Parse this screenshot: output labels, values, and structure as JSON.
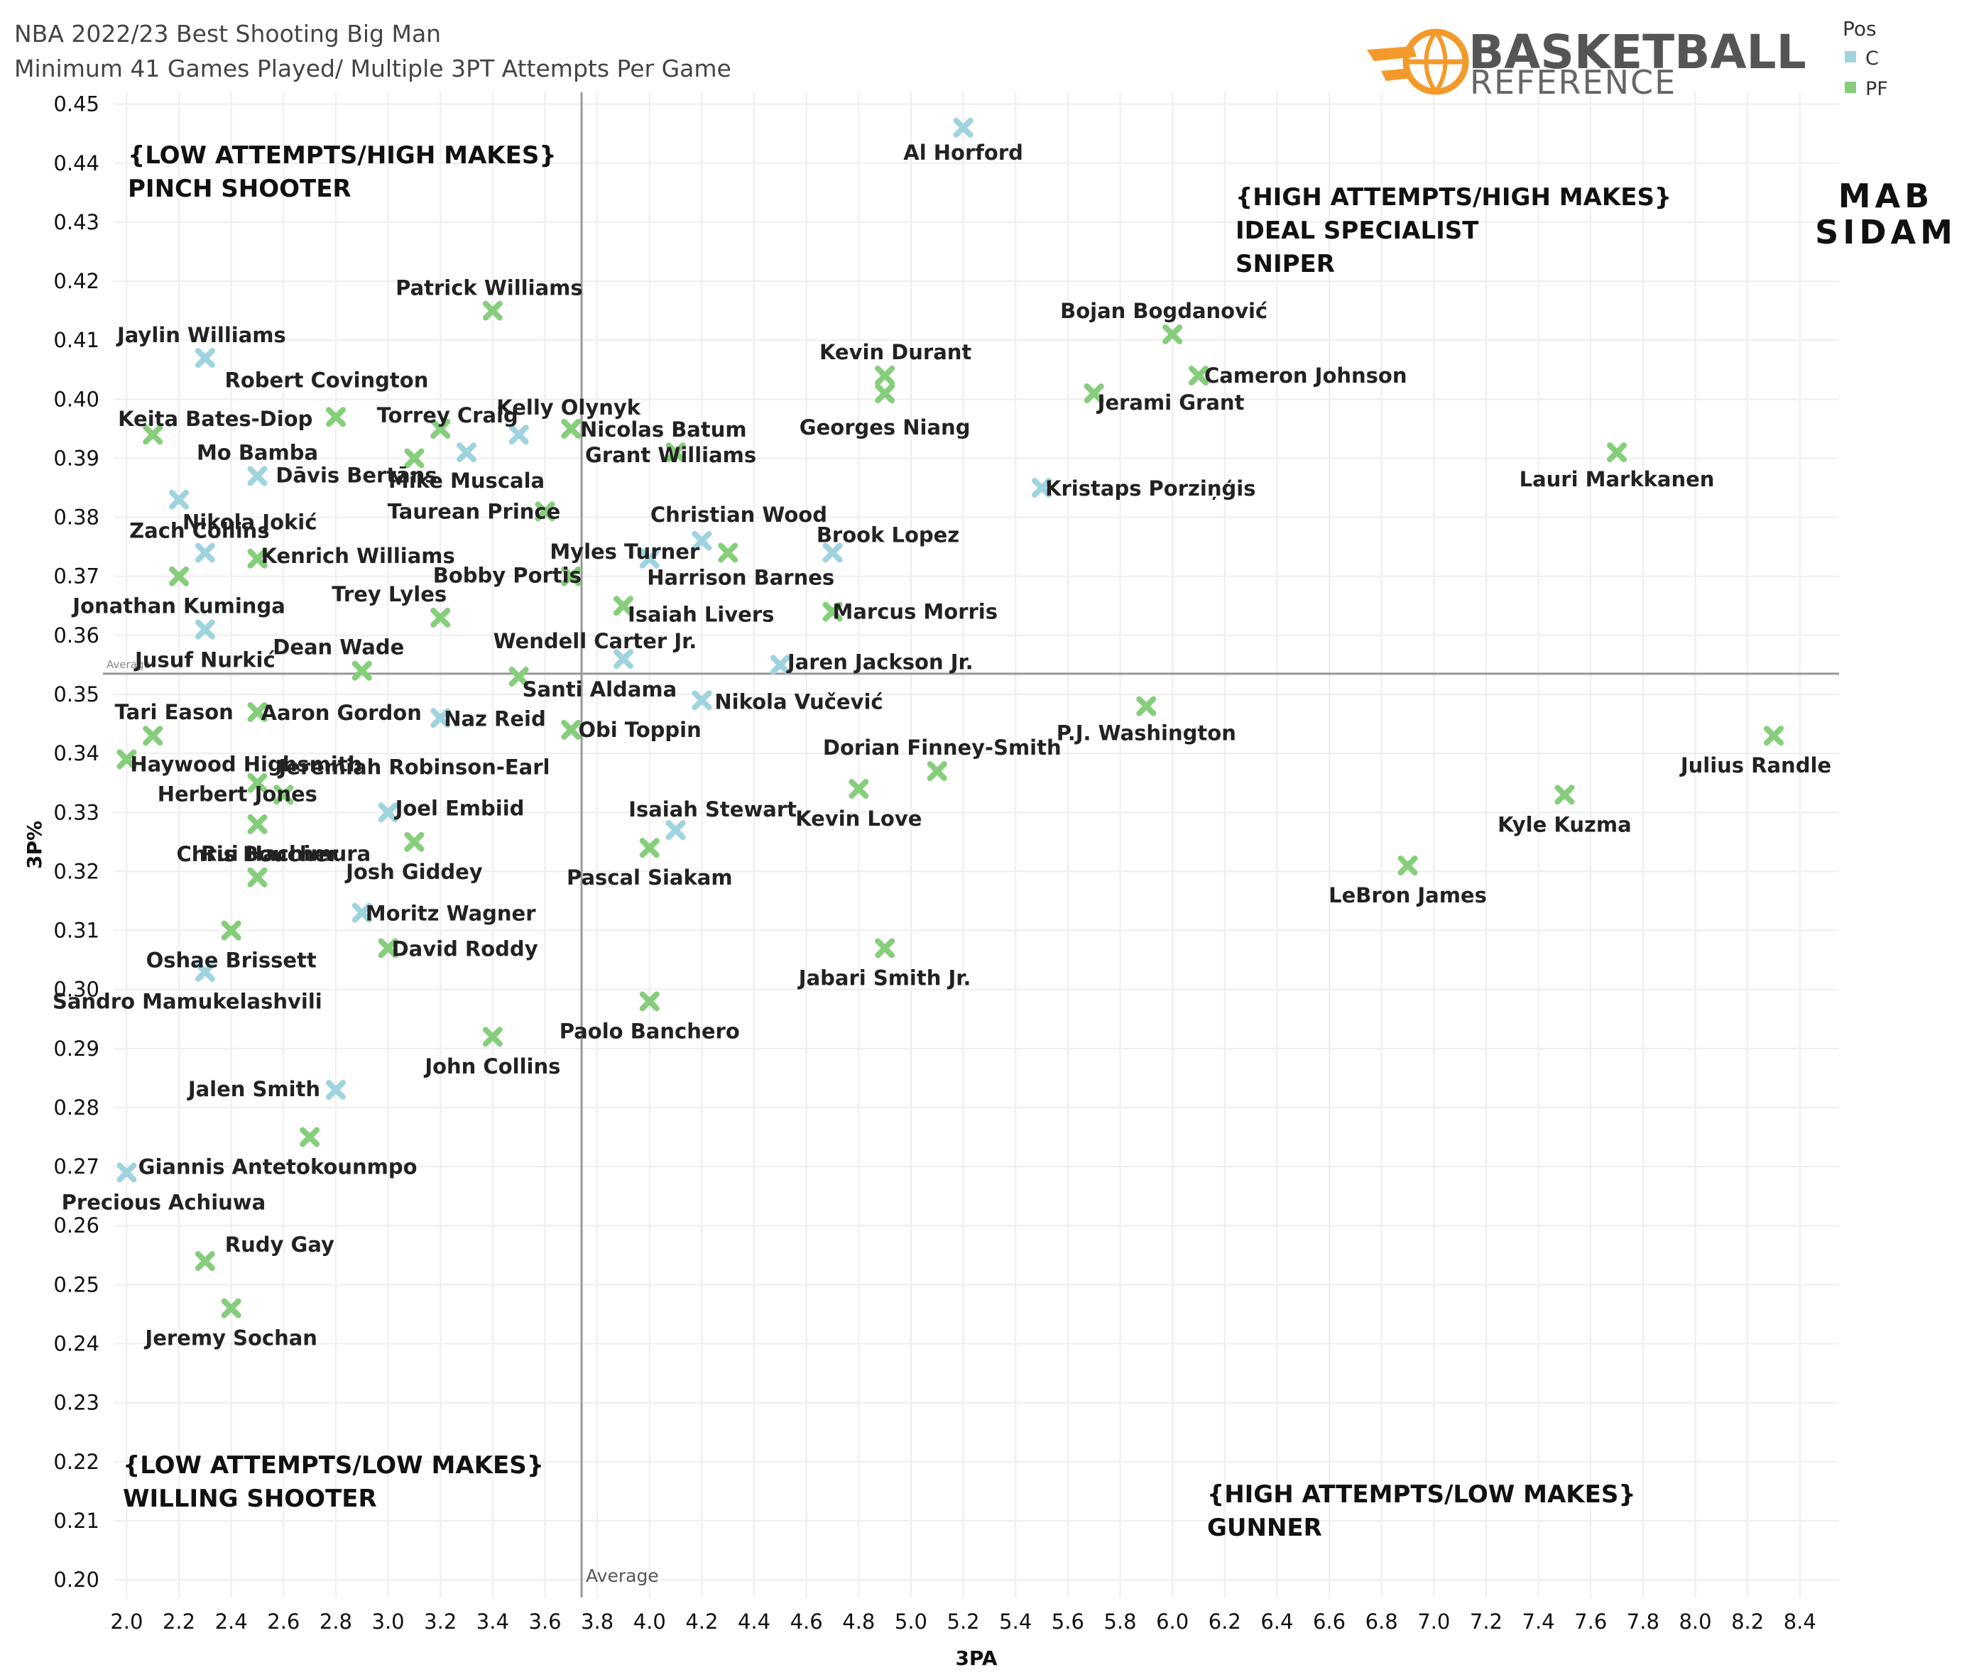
{
  "colors": {
    "C": "#9fd3df",
    "PF": "#86cd7c",
    "grid": "#eeeeee",
    "average_line": "#999999",
    "brand_orange": "#f39a2b"
  },
  "chart_data": {
    "type": "scatter",
    "title": "NBA 2022/23 Best Shooting Big Man",
    "subtitle": "Minimum 41 Games Played/ Multiple 3PT Attempts Per Game",
    "xlabel": "3PA",
    "ylabel": "3P%",
    "xlim": [
      1.95,
      8.55
    ],
    "ylim": [
      0.197,
      0.452
    ],
    "x_ticks": [
      "2.0",
      "2.2",
      "2.4",
      "2.6",
      "2.8",
      "3.0",
      "3.2",
      "3.4",
      "3.6",
      "3.8",
      "4.0",
      "4.2",
      "4.4",
      "4.6",
      "4.8",
      "5.0",
      "5.2",
      "5.4",
      "5.6",
      "5.8",
      "6.0",
      "6.2",
      "6.4",
      "6.6",
      "6.8",
      "7.0",
      "7.2",
      "7.4",
      "7.6",
      "7.8",
      "8.0",
      "8.2",
      "8.4"
    ],
    "y_ticks": [
      "0.20",
      "0.21",
      "0.22",
      "0.23",
      "0.24",
      "0.25",
      "0.26",
      "0.27",
      "0.28",
      "0.29",
      "0.30",
      "0.31",
      "0.32",
      "0.33",
      "0.34",
      "0.35",
      "0.36",
      "0.37",
      "0.38",
      "0.39",
      "0.40",
      "0.41",
      "0.42",
      "0.43",
      "0.44",
      "0.45"
    ],
    "grid": true,
    "legend": {
      "title": "Pos",
      "placement": "top-right",
      "entries": [
        {
          "key": "C",
          "label": "C"
        },
        {
          "key": "PF",
          "label": "PF"
        }
      ]
    },
    "reference_lines": {
      "x_average": 3.74,
      "y_average": 0.3535,
      "x_label": "Average",
      "y_label": "Average"
    },
    "quadrants": {
      "top_left": [
        "{LOW ATTEMPTS/HIGH MAKES}",
        "PINCH SHOOTER"
      ],
      "top_right": [
        "{HIGH ATTEMPTS/HIGH MAKES}",
        "IDEAL SPECIALIST",
        "SNIPER"
      ],
      "bottom_left": [
        "{LOW ATTEMPTS/LOW MAKES}",
        "WILLING SHOOTER"
      ],
      "bottom_right": [
        "{HIGH ATTEMPTS/LOW MAKES}",
        "GUNNER"
      ]
    },
    "points": [
      {
        "name": "Al Horford",
        "pos": "C",
        "x": 5.2,
        "y": 0.446,
        "label": "Al Horford"
      },
      {
        "name": "Patrick Williams",
        "pos": "PF",
        "x": 3.4,
        "y": 0.415,
        "label": "Patrick Williams"
      },
      {
        "name": "Bojan Bogdanović",
        "pos": "PF",
        "x": 6.0,
        "y": 0.411,
        "label": "Bojan Bogdanović"
      },
      {
        "name": "Jaylin Williams",
        "pos": "C",
        "x": 2.3,
        "y": 0.407,
        "label": "Jaylin Williams"
      },
      {
        "name": "Kevin Durant",
        "pos": "PF",
        "x": 4.9,
        "y": 0.404,
        "label": "Kevin Durant"
      },
      {
        "name": "Cameron Johnson",
        "pos": "PF",
        "x": 6.1,
        "y": 0.404,
        "label": "Cameron Johnson"
      },
      {
        "name": "Georges Niang",
        "pos": "PF",
        "x": 4.9,
        "y": 0.401,
        "label": "Georges Niang"
      },
      {
        "name": "Jerami Grant",
        "pos": "PF",
        "x": 5.7,
        "y": 0.401,
        "label": "Jerami Grant"
      },
      {
        "name": "Robert Covington",
        "pos": "PF",
        "x": 2.8,
        "y": 0.397,
        "label": "Robert Covington"
      },
      {
        "name": "Torrey Craig",
        "pos": "PF",
        "x": 3.2,
        "y": 0.395,
        "label": "Torrey Craig"
      },
      {
        "name": "Kelly Olynyk",
        "pos": "C",
        "x": 3.5,
        "y": 0.394,
        "label": "Kelly Olynyk"
      },
      {
        "name": "Nicolas Batum",
        "pos": "PF",
        "x": 3.7,
        "y": 0.395,
        "label": "Nicolas Batum"
      },
      {
        "name": "Keita Bates-Diop",
        "pos": "PF",
        "x": 2.1,
        "y": 0.394,
        "label": "Keita Bates-Diop"
      },
      {
        "name": "Mo Bamba",
        "pos": "C",
        "x": 2.5,
        "y": 0.387,
        "label": "Mo Bamba"
      },
      {
        "name": "Dāvis Bertāns",
        "pos": "PF",
        "x": 3.1,
        "y": 0.39,
        "label": "Dāvis Bertāns"
      },
      {
        "name": "Mike Muscala",
        "pos": "C",
        "x": 3.3,
        "y": 0.391,
        "label": "Mike Muscala"
      },
      {
        "name": "Grant Williams",
        "pos": "PF",
        "x": 4.1,
        "y": 0.391,
        "label": "Grant Williams"
      },
      {
        "name": "Lauri Markkanen",
        "pos": "PF",
        "x": 7.7,
        "y": 0.391,
        "label": "Lauri Markkanen"
      },
      {
        "name": "Kristaps Porziņģis",
        "pos": "C",
        "x": 5.5,
        "y": 0.385,
        "label": "Kristaps Porziņģis"
      },
      {
        "name": "Nikola Jokić",
        "pos": "C",
        "x": 2.2,
        "y": 0.383,
        "label": "Nikola Jokić"
      },
      {
        "name": "Taurean Prince",
        "pos": "PF",
        "x": 3.6,
        "y": 0.381,
        "label": "Taurean Prince"
      },
      {
        "name": "Christian Wood",
        "pos": "C",
        "x": 4.2,
        "y": 0.376,
        "label": "Christian Wood"
      },
      {
        "name": "Brook Lopez",
        "pos": "C",
        "x": 4.7,
        "y": 0.374,
        "label": "Brook Lopez"
      },
      {
        "name": "Zach Collins",
        "pos": "C",
        "x": 2.3,
        "y": 0.374,
        "label": "Zach Collins"
      },
      {
        "name": "Kenrich Williams",
        "pos": "PF",
        "x": 2.5,
        "y": 0.373,
        "label": "Kenrich Williams"
      },
      {
        "name": "Myles Turner",
        "pos": "C",
        "x": 4.0,
        "y": 0.373,
        "label": "Myles Turner"
      },
      {
        "name": "Harrison Barnes",
        "pos": "PF",
        "x": 4.3,
        "y": 0.374,
        "label": "Harrison Barnes"
      },
      {
        "name": "Bobby Portis",
        "pos": "PF",
        "x": 3.7,
        "y": 0.37,
        "label": "Bobby Portis"
      },
      {
        "name": "Jonathan Kuminga",
        "pos": "PF",
        "x": 2.2,
        "y": 0.37,
        "label": "Jonathan Kuminga"
      },
      {
        "name": "Trey Lyles",
        "pos": "PF",
        "x": 3.2,
        "y": 0.363,
        "label": "Trey Lyles"
      },
      {
        "name": "Isaiah Livers",
        "pos": "PF",
        "x": 3.9,
        "y": 0.365,
        "label": "Isaiah Livers"
      },
      {
        "name": "Marcus Morris",
        "pos": "PF",
        "x": 4.7,
        "y": 0.364,
        "label": "Marcus Morris"
      },
      {
        "name": "Jusuf Nurkić",
        "pos": "C",
        "x": 2.3,
        "y": 0.361,
        "label": "Jusuf Nurkić"
      },
      {
        "name": "Wendell Carter Jr.",
        "pos": "C",
        "x": 3.9,
        "y": 0.356,
        "label": "Wendell Carter Jr."
      },
      {
        "name": "Jaren Jackson Jr.",
        "pos": "C",
        "x": 4.5,
        "y": 0.355,
        "label": "Jaren Jackson Jr."
      },
      {
        "name": "Dean Wade",
        "pos": "PF",
        "x": 2.9,
        "y": 0.354,
        "label": "Dean Wade"
      },
      {
        "name": "Santi Aldama",
        "pos": "PF",
        "x": 3.5,
        "y": 0.353,
        "label": "Santi Aldama"
      },
      {
        "name": "Nikola Vučević",
        "pos": "C",
        "x": 4.2,
        "y": 0.349,
        "label": "Nikola Vučević"
      },
      {
        "name": "P.J. Washington",
        "pos": "PF",
        "x": 5.9,
        "y": 0.348,
        "label": "P.J. Washington"
      },
      {
        "name": "Aaron Gordon",
        "pos": "PF",
        "x": 2.5,
        "y": 0.347,
        "label": "Aaron Gordon"
      },
      {
        "name": "Naz Reid",
        "pos": "C",
        "x": 3.2,
        "y": 0.346,
        "label": "Naz Reid"
      },
      {
        "name": "Obi Toppin",
        "pos": "PF",
        "x": 3.7,
        "y": 0.344,
        "label": "Obi Toppin"
      },
      {
        "name": "Tari Eason",
        "pos": "PF",
        "x": 2.1,
        "y": 0.343,
        "label": "Tari Eason"
      },
      {
        "name": "Julius Randle",
        "pos": "PF",
        "x": 8.3,
        "y": 0.343,
        "label": "Julius Randle"
      },
      {
        "name": "Haywood Highsmith",
        "pos": "PF",
        "x": 2.0,
        "y": 0.339,
        "label": "Haywood Highsmith"
      },
      {
        "name": "Dorian Finney-Smith",
        "pos": "PF",
        "x": 5.1,
        "y": 0.337,
        "label": "Dorian Finney-Smith"
      },
      {
        "name": "Jeremiah Robinson-Earl",
        "pos": "PF",
        "x": 2.5,
        "y": 0.335,
        "label": "Jeremiah Robinson-Earl"
      },
      {
        "name": "Kevin Love",
        "pos": "PF",
        "x": 4.8,
        "y": 0.334,
        "label": "Kevin Love"
      },
      {
        "name": "Herbert Jones",
        "pos": "PF",
        "x": 2.6,
        "y": 0.333,
        "label": "Herbert Jones"
      },
      {
        "name": "Kyle Kuzma",
        "pos": "PF",
        "x": 7.5,
        "y": 0.333,
        "label": "Kyle Kuzma"
      },
      {
        "name": "Joel Embiid",
        "pos": "C",
        "x": 3.0,
        "y": 0.33,
        "label": "Joel Embiid"
      },
      {
        "name": "Chris Boucher",
        "pos": "PF",
        "x": 2.5,
        "y": 0.328,
        "label": "Chris Boucher"
      },
      {
        "name": "Isaiah Stewart",
        "pos": "C",
        "x": 4.1,
        "y": 0.327,
        "label": "Isaiah Stewart"
      },
      {
        "name": "Josh Giddey",
        "pos": "PF",
        "x": 3.1,
        "y": 0.325,
        "label": "Josh Giddey"
      },
      {
        "name": "Pascal Siakam",
        "pos": "PF",
        "x": 4.0,
        "y": 0.324,
        "label": "Pascal Siakam"
      },
      {
        "name": "LeBron James",
        "pos": "PF",
        "x": 6.9,
        "y": 0.321,
        "label": "LeBron James"
      },
      {
        "name": "Rui Hachimura",
        "pos": "PF",
        "x": 2.5,
        "y": 0.319,
        "label": "Rui Hachimura"
      },
      {
        "name": "Moritz Wagner",
        "pos": "C",
        "x": 2.9,
        "y": 0.313,
        "label": "Moritz Wagner"
      },
      {
        "name": "Oshae Brissett",
        "pos": "PF",
        "x": 2.4,
        "y": 0.31,
        "label": "Oshae Brissett"
      },
      {
        "name": "David Roddy",
        "pos": "PF",
        "x": 3.0,
        "y": 0.307,
        "label": "David Roddy"
      },
      {
        "name": "Jabari Smith Jr.",
        "pos": "PF",
        "x": 4.9,
        "y": 0.307,
        "label": "Jabari Smith Jr."
      },
      {
        "name": "Sandro Mamukelashvili",
        "pos": "C",
        "x": 2.3,
        "y": 0.303,
        "label": "Sandro Mamukelashvili"
      },
      {
        "name": "Paolo Banchero",
        "pos": "PF",
        "x": 4.0,
        "y": 0.298,
        "label": "Paolo Banchero"
      },
      {
        "name": "John Collins",
        "pos": "PF",
        "x": 3.4,
        "y": 0.292,
        "label": "John Collins"
      },
      {
        "name": "Jalen Smith",
        "pos": "C",
        "x": 2.8,
        "y": 0.283,
        "label": "Jalen Smith"
      },
      {
        "name": "Giannis Antetokounmpo",
        "pos": "PF",
        "x": 2.7,
        "y": 0.275,
        "label": "Giannis Antetokounmpo"
      },
      {
        "name": "Precious Achiuwa",
        "pos": "C",
        "x": 2.0,
        "y": 0.269,
        "label": "Precious Achiuwa"
      },
      {
        "name": "Rudy Gay",
        "pos": "PF",
        "x": 2.3,
        "y": 0.254,
        "label": "Rudy Gay"
      },
      {
        "name": "Jeremy Sochan",
        "pos": "PF",
        "x": 2.4,
        "y": 0.246,
        "label": "Jeremy Sochan"
      }
    ]
  },
  "branding": {
    "logo_line1": "BASKETBALL",
    "logo_line2": "REFERENCE",
    "watermark_line1": "MAB",
    "watermark_line2": "SIDAM",
    "logo_icon": "basketball-icon"
  }
}
